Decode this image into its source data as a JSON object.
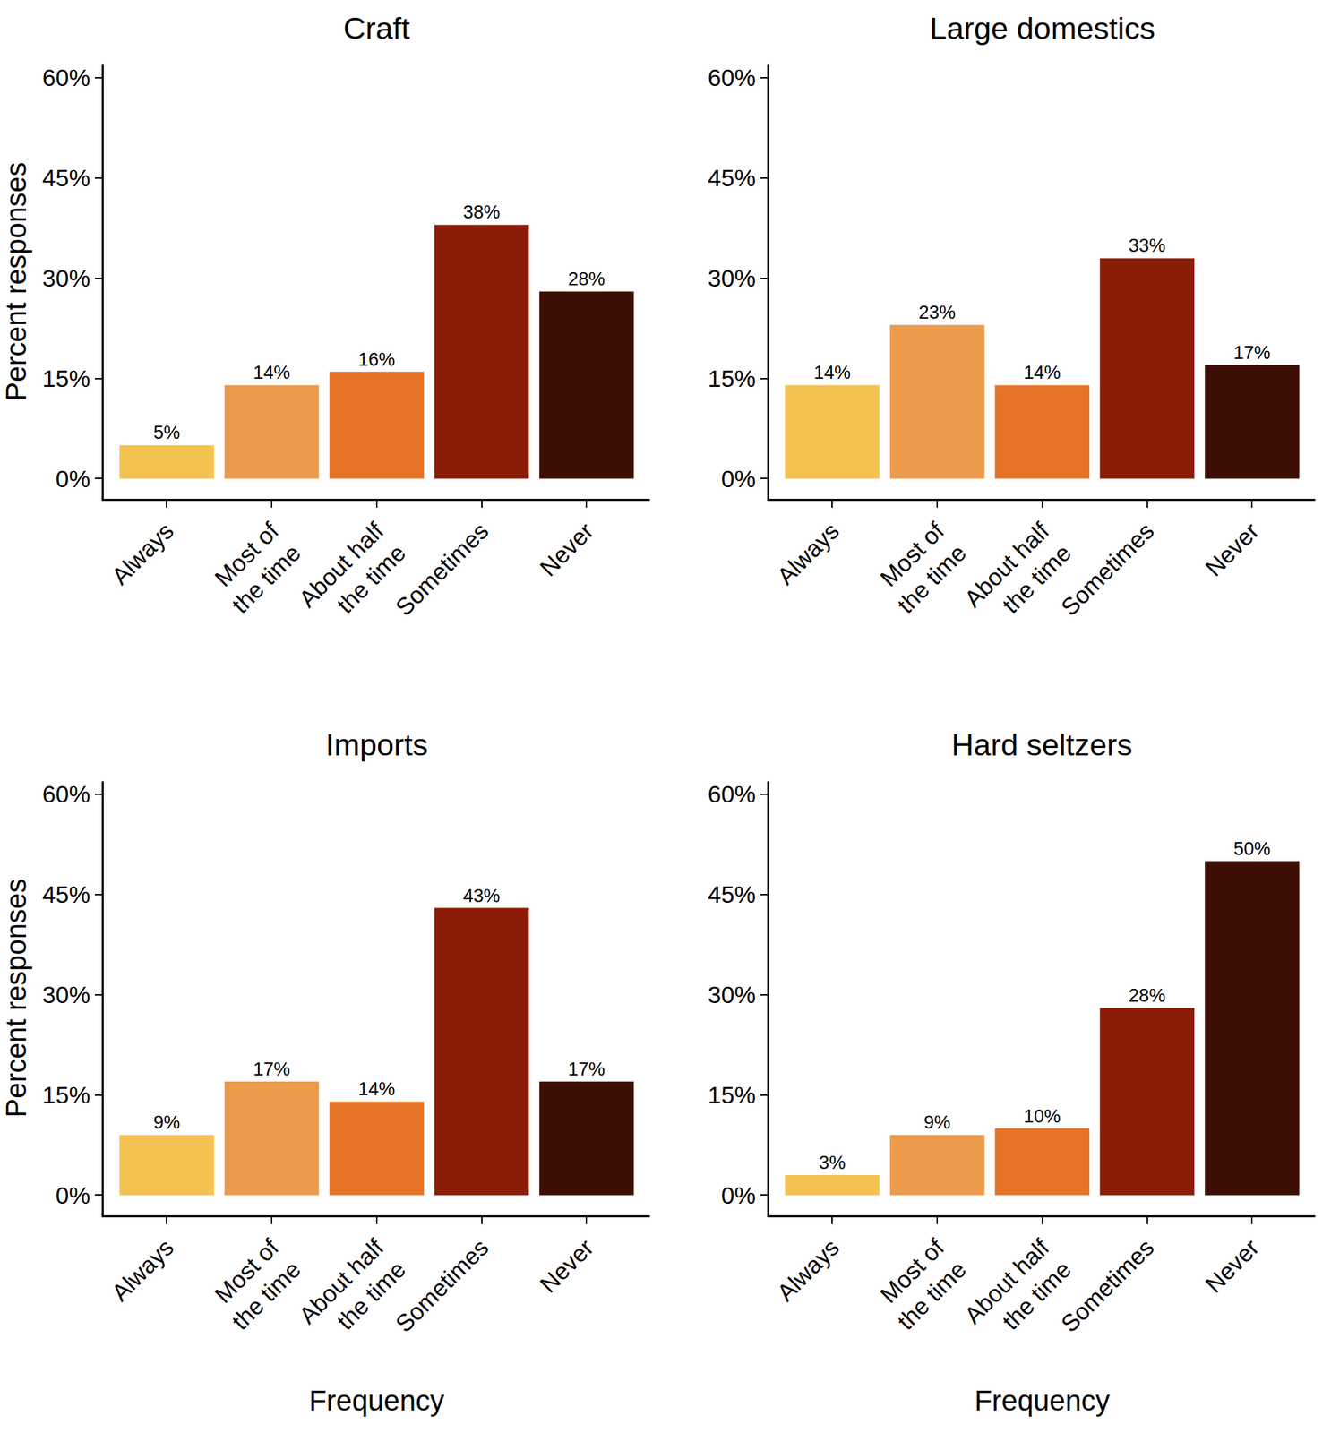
{
  "chart_data": [
    {
      "type": "bar",
      "title": "Craft",
      "categories": [
        "Always",
        "Most of\nthe time",
        "About half\nthe time",
        "Sometimes",
        "Never"
      ],
      "values": [
        5,
        14,
        16,
        38,
        28
      ],
      "value_labels": [
        "5%",
        "14%",
        "16%",
        "38%",
        "28%"
      ],
      "colors": [
        "#F4C251",
        "#EB9B4B",
        "#E57427",
        "#8B1C07",
        "#3D0F04"
      ],
      "ylabel": "Percent responses",
      "ylim": [
        -3,
        62
      ],
      "yticks": [
        {
          "value": 0,
          "label": "0%"
        },
        {
          "value": 15,
          "label": "15%"
        },
        {
          "value": 30,
          "label": "30%"
        },
        {
          "value": 45,
          "label": "45%"
        },
        {
          "value": 60,
          "label": "60%"
        }
      ],
      "data_labels": true,
      "grid": false
    },
    {
      "type": "bar",
      "title": "Large domestics",
      "categories": [
        "Always",
        "Most of\nthe time",
        "About half\nthe time",
        "Sometimes",
        "Never"
      ],
      "values": [
        14,
        23,
        14,
        33,
        17
      ],
      "value_labels": [
        "14%",
        "23%",
        "14%",
        "33%",
        "17%"
      ],
      "colors": [
        "#F4C251",
        "#EB9B4B",
        "#E57427",
        "#8B1C07",
        "#3D0F04"
      ],
      "ylim": [
        -3,
        62
      ],
      "yticks": [
        {
          "value": 0,
          "label": "0%"
        },
        {
          "value": 15,
          "label": "15%"
        },
        {
          "value": 30,
          "label": "30%"
        },
        {
          "value": 45,
          "label": "45%"
        },
        {
          "value": 60,
          "label": "60%"
        }
      ],
      "data_labels": true,
      "grid": false
    },
    {
      "type": "bar",
      "title": "Imports",
      "categories": [
        "Always",
        "Most of\nthe time",
        "About half\nthe time",
        "Sometimes",
        "Never"
      ],
      "values": [
        9,
        17,
        14,
        43,
        17
      ],
      "value_labels": [
        "9%",
        "17%",
        "14%",
        "43%",
        "17%"
      ],
      "colors": [
        "#F4C251",
        "#EB9B4B",
        "#E57427",
        "#8B1C07",
        "#3D0F04"
      ],
      "xlabel": "Frequency",
      "ylabel": "Percent responses",
      "ylim": [
        -3,
        62
      ],
      "yticks": [
        {
          "value": 0,
          "label": "0%"
        },
        {
          "value": 15,
          "label": "15%"
        },
        {
          "value": 30,
          "label": "30%"
        },
        {
          "value": 45,
          "label": "45%"
        },
        {
          "value": 60,
          "label": "60%"
        }
      ],
      "data_labels": true,
      "grid": false
    },
    {
      "type": "bar",
      "title": "Hard seltzers",
      "categories": [
        "Always",
        "Most of\nthe time",
        "About half\nthe time",
        "Sometimes",
        "Never"
      ],
      "values": [
        3,
        9,
        10,
        28,
        50
      ],
      "value_labels": [
        "3%",
        "9%",
        "10%",
        "28%",
        "50%"
      ],
      "colors": [
        "#F4C251",
        "#EB9B4B",
        "#E57427",
        "#8B1C07",
        "#3D0F04"
      ],
      "xlabel": "Frequency",
      "ylim": [
        -3,
        62
      ],
      "yticks": [
        {
          "value": 0,
          "label": "0%"
        },
        {
          "value": 15,
          "label": "15%"
        },
        {
          "value": 30,
          "label": "30%"
        },
        {
          "value": 45,
          "label": "45%"
        },
        {
          "value": 60,
          "label": "60%"
        }
      ],
      "data_labels": true,
      "grid": false
    }
  ]
}
